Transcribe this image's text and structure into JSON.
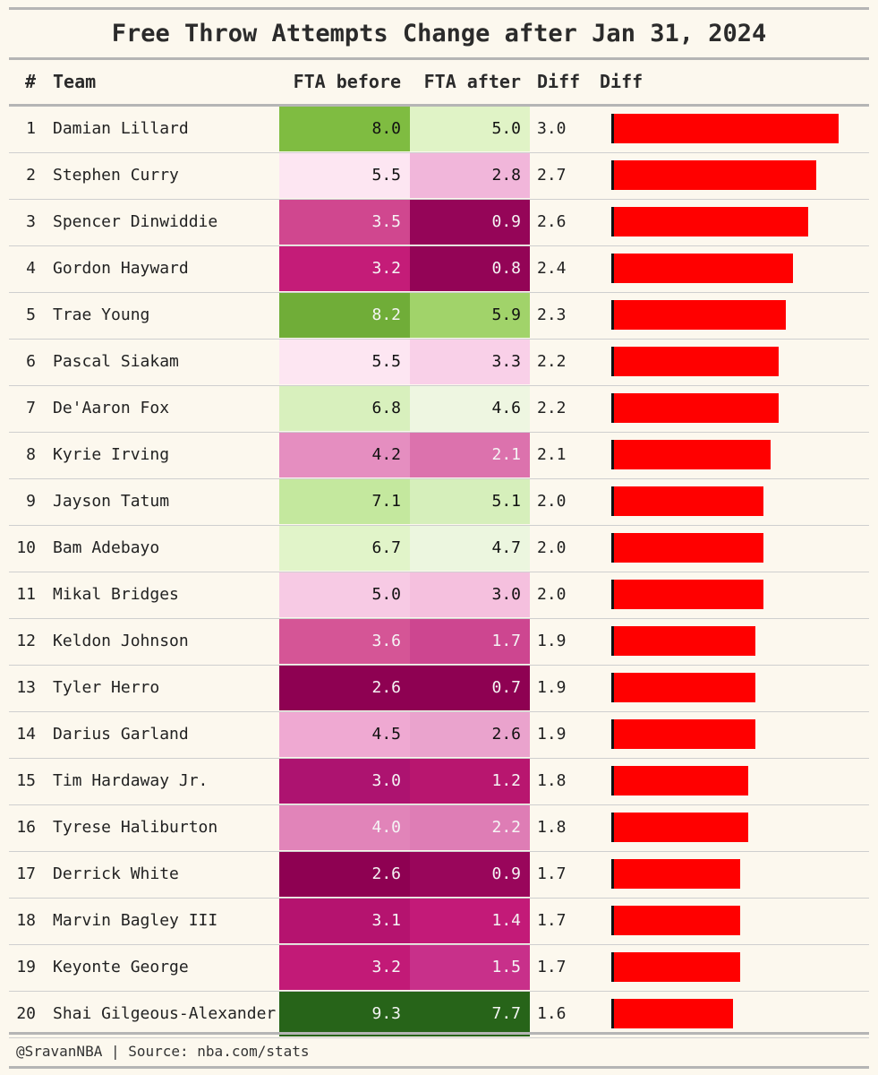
{
  "chart_data": {
    "type": "table",
    "title": "Free Throw Attempts Change after Jan 31, 2024",
    "columns": [
      "#",
      "Team",
      "FTA before",
      "FTA after",
      "Diff",
      "Diff"
    ],
    "diff_bar_range": [
      0,
      3.0
    ],
    "bar_color": "#ff0000",
    "rows": [
      {
        "rank": "1",
        "name": "Damian Lillard",
        "before": "8.0",
        "after": "5.0",
        "diff": "3.0",
        "bg_before": "#7fbc41",
        "bg_after": "#e0f3c6",
        "fg_before": "#111111",
        "fg_after": "#111111"
      },
      {
        "rank": "2",
        "name": "Stephen Curry",
        "before": "5.5",
        "after": "2.8",
        "diff": "2.7",
        "bg_before": "#fde6f2",
        "bg_after": "#f1b6da",
        "fg_before": "#111111",
        "fg_after": "#111111"
      },
      {
        "rank": "3",
        "name": "Spencer Dinwiddie",
        "before": "3.5",
        "after": "0.9",
        "diff": "2.6",
        "bg_before": "#d0478f",
        "bg_after": "#950558",
        "fg_before": "#f5f5f5",
        "fg_after": "#f5f5f5"
      },
      {
        "rank": "4",
        "name": "Gordon Hayward",
        "before": "3.2",
        "after": "0.8",
        "diff": "2.4",
        "bg_before": "#c41c78",
        "bg_after": "#930456",
        "fg_before": "#f5f5f5",
        "fg_after": "#f5f5f5"
      },
      {
        "rank": "5",
        "name": "Trae Young",
        "before": "8.2",
        "after": "5.9",
        "diff": "2.3",
        "bg_before": "#70ad38",
        "bg_after": "#a1d36a",
        "fg_before": "#f5f5f5",
        "fg_after": "#111111"
      },
      {
        "rank": "6",
        "name": "Pascal Siakam",
        "before": "5.5",
        "after": "3.3",
        "diff": "2.2",
        "bg_before": "#fde6f2",
        "bg_after": "#f9d0e8",
        "fg_before": "#111111",
        "fg_after": "#111111"
      },
      {
        "rank": "7",
        "name": "De'Aaron Fox",
        "before": "6.8",
        "after": "4.6",
        "diff": "2.2",
        "bg_before": "#d8f0bd",
        "bg_after": "#eef6e1",
        "fg_before": "#111111",
        "fg_after": "#111111"
      },
      {
        "rank": "8",
        "name": "Kyrie Irving",
        "before": "4.2",
        "after": "2.1",
        "diff": "2.1",
        "bg_before": "#e58ec0",
        "bg_after": "#dc72ad",
        "fg_before": "#111111",
        "fg_after": "#f5f5f5"
      },
      {
        "rank": "9",
        "name": "Jayson Tatum",
        "before": "7.1",
        "after": "5.1",
        "diff": "2.0",
        "bg_before": "#c4e89e",
        "bg_after": "#d6efbb",
        "fg_before": "#111111",
        "fg_after": "#111111"
      },
      {
        "rank": "10",
        "name": "Bam Adebayo",
        "before": "6.7",
        "after": "4.7",
        "diff": "2.0",
        "bg_before": "#e1f4c9",
        "bg_after": "#ecf6df",
        "fg_before": "#111111",
        "fg_after": "#111111"
      },
      {
        "rank": "11",
        "name": "Mikal Bridges",
        "before": "5.0",
        "after": "3.0",
        "diff": "2.0",
        "bg_before": "#f7cae4",
        "bg_after": "#f5c0de",
        "fg_before": "#111111",
        "fg_after": "#111111"
      },
      {
        "rank": "12",
        "name": "Keldon Johnson",
        "before": "3.6",
        "after": "1.7",
        "diff": "1.9",
        "bg_before": "#d55596",
        "bg_after": "#cd4690",
        "fg_before": "#f5f5f5",
        "fg_after": "#f5f5f5"
      },
      {
        "rank": "13",
        "name": "Tyler Herro",
        "before": "2.6",
        "after": "0.7",
        "diff": "1.9",
        "bg_before": "#8e0152",
        "bg_after": "#8e0152",
        "fg_before": "#f5f5f5",
        "fg_after": "#f5f5f5"
      },
      {
        "rank": "14",
        "name": "Darius Garland",
        "before": "4.5",
        "after": "2.6",
        "diff": "1.9",
        "bg_before": "#efa9d2",
        "bg_after": "#eaa3cd",
        "fg_before": "#111111",
        "fg_after": "#111111"
      },
      {
        "rank": "15",
        "name": "Tim Hardaway Jr.",
        "before": "3.0",
        "after": "1.2",
        "diff": "1.8",
        "bg_before": "#ad1370",
        "bg_after": "#b8166f",
        "fg_before": "#f5f5f5",
        "fg_after": "#f5f5f5"
      },
      {
        "rank": "16",
        "name": "Tyrese Haliburton",
        "before": "4.0",
        "after": "2.2",
        "diff": "1.8",
        "bg_before": "#e184b9",
        "bg_after": "#de7db5",
        "fg_before": "#f5f5f5",
        "fg_after": "#f5f5f5"
      },
      {
        "rank": "17",
        "name": "Derrick White",
        "before": "2.6",
        "after": "0.9",
        "diff": "1.7",
        "bg_before": "#8e0152",
        "bg_after": "#99065b",
        "fg_before": "#f5f5f5",
        "fg_after": "#f5f5f5"
      },
      {
        "rank": "18",
        "name": "Marvin Bagley III",
        "before": "3.1",
        "after": "1.4",
        "diff": "1.7",
        "bg_before": "#b5136f",
        "bg_after": "#c31a78",
        "fg_before": "#f5f5f5",
        "fg_after": "#f5f5f5"
      },
      {
        "rank": "19",
        "name": "Keyonte George",
        "before": "3.2",
        "after": "1.5",
        "diff": "1.7",
        "bg_before": "#c21a77",
        "bg_after": "#c8308a",
        "fg_before": "#f5f5f5",
        "fg_after": "#f5f5f5"
      },
      {
        "rank": "20",
        "name": "Shai Gilgeous-Alexander",
        "before": "9.3",
        "after": "7.7",
        "diff": "1.6",
        "bg_before": "#276419",
        "bg_after": "#276419",
        "fg_before": "#f5f5f5",
        "fg_after": "#f5f5f5"
      }
    ]
  },
  "footer": "@SravanNBA | Source: nba.com/stats"
}
